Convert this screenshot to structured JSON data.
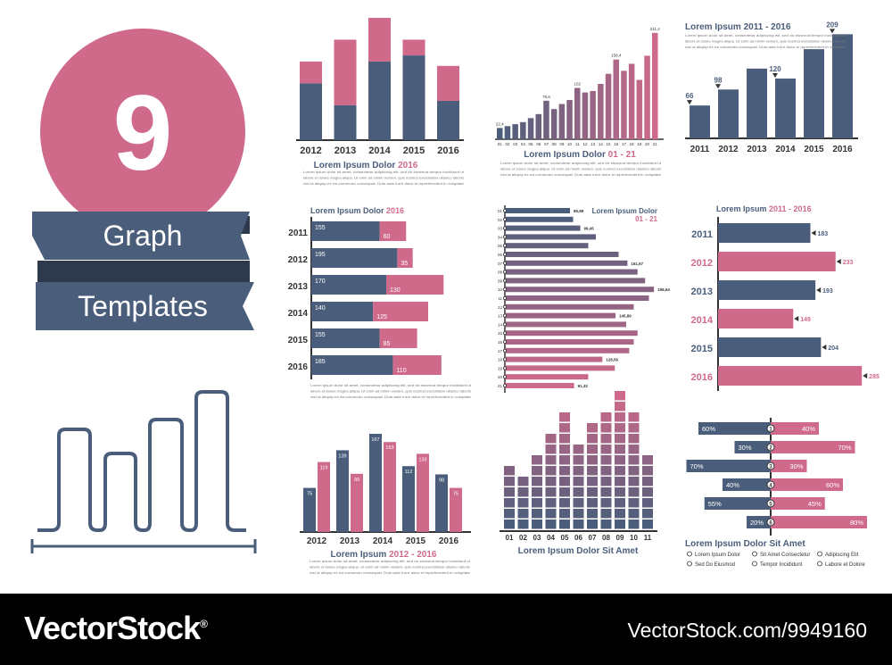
{
  "colors": {
    "slate": "#4a5e7b",
    "pink": "#cf6a8a",
    "axis": "#333333",
    "text": "#333333",
    "muted": "#777777"
  },
  "hero": {
    "number": "9",
    "line1": "Graph",
    "line2": "Templates"
  },
  "body_text": {
    "line1": "Lorem ipsum dolor sit amet, consectetur adipiscing elit, sed do eiusmod tempor incididunt ut",
    "line2": "labore et dolore magna aliqua. Ut enim ad minim veniam, quis nostrud exercitation ullamco laboris",
    "line3": "nisi ut aliquip ex ea commodo consequat. Duis aute irure dolor in reprehenderit in voluptate"
  },
  "chart_data": [
    {
      "id": "c1",
      "type": "bar",
      "stacked": true,
      "categories": [
        "2012",
        "2013",
        "2014",
        "2015",
        "2016"
      ],
      "series": [
        {
          "values": [
            65,
            40,
            90,
            97,
            45
          ]
        },
        {
          "values": [
            25,
            75,
            50,
            18,
            40
          ]
        }
      ],
      "title": "Lorem Ipsum Dolor",
      "title_accent": "2016",
      "ylim": [
        0,
        140
      ]
    },
    {
      "id": "c2",
      "type": "bar",
      "categories": [
        "01",
        "02",
        "03",
        "04",
        "05",
        "06",
        "07",
        "08",
        "09",
        "10",
        "11",
        "12",
        "13",
        "14",
        "15",
        "16",
        "17",
        "18",
        "19",
        "20",
        "21"
      ],
      "values": [
        22.4,
        26,
        30,
        34,
        42,
        50,
        76.6,
        60,
        70,
        78,
        102,
        93,
        96,
        110,
        130,
        158.4,
        136,
        150,
        118,
        166,
        211.4
      ],
      "labels": {
        "0": "22,4",
        "6": "76,6",
        "10": "102",
        "15": "158,4",
        "20": "211,4"
      },
      "title": "Lorem Ipsum Dolor",
      "title_accent": "01 - 21",
      "ylim": [
        0,
        220
      ]
    },
    {
      "id": "c3",
      "type": "bar",
      "categories": [
        "2011",
        "2012",
        "2013",
        "2014",
        "2015",
        "2016"
      ],
      "values": [
        66,
        98,
        140,
        120,
        179,
        209
      ],
      "labels": {
        "0": "66",
        "1": "98",
        "3": "120",
        "5": "209"
      },
      "title": "Lorem Ipsum 2011 - 2016",
      "ylim": [
        0,
        215
      ]
    },
    {
      "id": "c4",
      "type": "bar",
      "orientation": "horizontal",
      "stacked": true,
      "categories": [
        "2011",
        "2012",
        "2013",
        "2014",
        "2015",
        "2016"
      ],
      "series": [
        {
          "values": [
            155,
            195,
            170,
            140,
            155,
            185
          ]
        },
        {
          "values": [
            60,
            35,
            130,
            125,
            85,
            110
          ]
        }
      ],
      "title": "Lorem Ipsum Dolor",
      "title_accent": "2016",
      "xlim": [
        0,
        350
      ]
    },
    {
      "id": "c5",
      "type": "bar",
      "orientation": "horizontal",
      "categories": [
        "01",
        "02",
        "03",
        "04",
        "05",
        "06",
        "07",
        "08",
        "09",
        "10",
        "11",
        "12",
        "13",
        "14",
        "15",
        "16",
        "17",
        "18",
        "19",
        "20",
        "21"
      ],
      "values": [
        85.89,
        90,
        99.45,
        120,
        110,
        150,
        161.67,
        175,
        185,
        196.64,
        190,
        170,
        145.89,
        160,
        175,
        170,
        164,
        128.56,
        145,
        110,
        91.32
      ],
      "labels": {
        "0": "85,89",
        "2": "99,45",
        "6": "161,67",
        "9": "196,64",
        "12": "145,89",
        "17": "128,56",
        "20": "91,32"
      },
      "title": "Lorem Ipsum Dolor",
      "title_accent": "01 - 21",
      "xlim": [
        0,
        200
      ]
    },
    {
      "id": "c6",
      "type": "bar",
      "orientation": "horizontal",
      "categories": [
        "2011",
        "2012",
        "2013",
        "2014",
        "2015",
        "2016"
      ],
      "values": [
        183,
        233,
        193,
        149,
        204,
        285
      ],
      "title": "Lorem Ipsum",
      "title_accent": "2011 - 2016",
      "xlim": [
        0,
        290
      ]
    },
    {
      "id": "c8",
      "type": "bar",
      "categories": [
        "2012",
        "2013",
        "2014",
        "2015",
        "2016"
      ],
      "series": [
        {
          "values": [
            75,
            139,
            167,
            112,
            98
          ]
        },
        {
          "values": [
            119,
            99,
            153,
            133,
            75
          ]
        }
      ],
      "labels_0": [
        "75",
        "139",
        "167",
        "112",
        "98"
      ],
      "labels_1": [
        "119",
        "99",
        "153",
        "133",
        "75"
      ],
      "title": "Lorem Ipsum",
      "title_accent": "2012 - 2016",
      "ylim": [
        0,
        170
      ]
    },
    {
      "id": "c9",
      "type": "bar",
      "style": "stacked-blocks",
      "categories": [
        "01",
        "02",
        "03",
        "04",
        "05",
        "06",
        "07",
        "08",
        "09",
        "10",
        "11"
      ],
      "values": [
        6,
        5,
        7,
        9,
        11,
        8,
        10,
        11,
        13,
        11,
        7
      ],
      "title": "Lorem Ipsum Dolor Sit Amet",
      "ylim": [
        0,
        13
      ]
    },
    {
      "id": "c10",
      "type": "bar",
      "orientation": "diverging",
      "categories": [
        "1",
        "2",
        "3",
        "4",
        "5",
        "6"
      ],
      "left": [
        60,
        30,
        70,
        40,
        55,
        20
      ],
      "right": [
        40,
        70,
        30,
        60,
        45,
        80
      ],
      "title": "Lorem Ipsum Dolor Sit Amet",
      "legend": [
        "Lorem Ipsum Dolor",
        "Sit Amet Consectetur",
        "Adipiscing Elit",
        "Sed Do Eiusmod",
        "Tempor Incididunt",
        "Labore et Dolore"
      ]
    }
  ],
  "footer": {
    "brand": "VectorStock",
    "trademark": "®",
    "url": "VectorStock.com/9949160"
  }
}
